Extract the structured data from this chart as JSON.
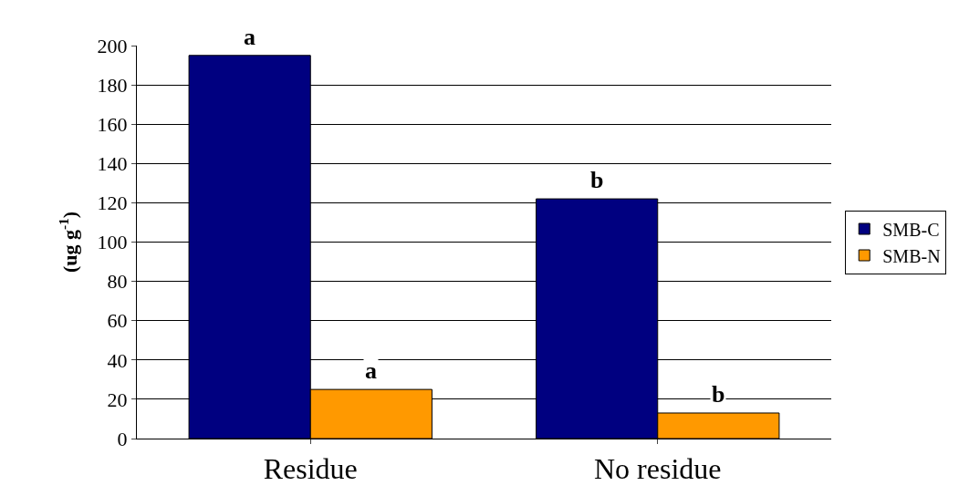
{
  "chart_data": {
    "type": "bar",
    "ylabel": "(ug g$^{-1}$)",
    "categories": [
      "Residue",
      "No residue"
    ],
    "series": [
      {
        "name": "SMB-C",
        "color": "#000080",
        "values": [
          195,
          122
        ],
        "value_labels": [
          "a",
          "b"
        ]
      },
      {
        "name": "SMB-N",
        "color": "#ff9900",
        "values": [
          25,
          13
        ],
        "value_labels": [
          "a",
          "b"
        ]
      }
    ],
    "ylim": [
      0,
      200
    ],
    "yticks": [
      0,
      20,
      40,
      60,
      80,
      100,
      120,
      140,
      160,
      180,
      200
    ],
    "grid": "y",
    "legend": "right"
  }
}
